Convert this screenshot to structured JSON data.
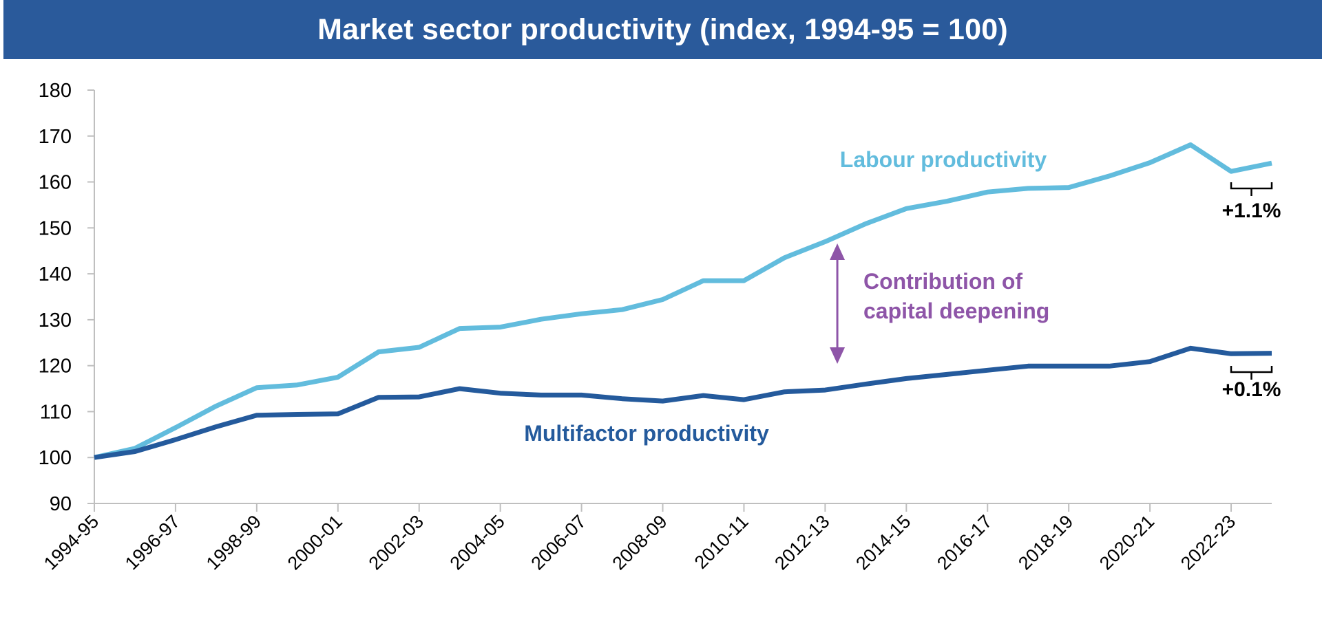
{
  "colors": {
    "title_bg": "#2A5A9B",
    "labour": "#62BCDD",
    "multifactor": "#245A9C",
    "arrow": "#8E55A8",
    "axis": "#BFBFBF"
  },
  "chart_data": {
    "type": "line",
    "title": "Market sector productivity (index, 1994-95 = 100)",
    "xlabel": "",
    "ylabel": "",
    "ylim": [
      90,
      180
    ],
    "yticks": [
      90,
      100,
      110,
      120,
      130,
      140,
      150,
      160,
      170,
      180
    ],
    "grid": false,
    "x": [
      "1994-95",
      "1995-96",
      "1996-97",
      "1997-98",
      "1998-99",
      "1999-00",
      "2000-01",
      "2001-02",
      "2002-03",
      "2003-04",
      "2004-05",
      "2005-06",
      "2006-07",
      "2007-08",
      "2008-09",
      "2009-10",
      "2010-11",
      "2011-12",
      "2012-13",
      "2013-14",
      "2014-15",
      "2015-16",
      "2016-17",
      "2017-18",
      "2018-19",
      "2019-20",
      "2020-21",
      "2021-22",
      "2022-23",
      "2023-24"
    ],
    "x_tick_labels": [
      "1994-95",
      "1996-97",
      "1998-99",
      "2000-01",
      "2002-03",
      "2004-05",
      "2006-07",
      "2008-09",
      "2010-11",
      "2012-13",
      "2014-15",
      "2016-17",
      "2018-19",
      "2020-21",
      "2022-23"
    ],
    "series": [
      {
        "name": "Labour productivity",
        "color_key": "labour",
        "values": [
          100.0,
          102.0,
          106.5,
          111.2,
          115.2,
          115.8,
          117.5,
          123.0,
          124.0,
          128.1,
          128.4,
          130.1,
          131.3,
          132.2,
          134.4,
          138.5,
          138.5,
          143.5,
          147.0,
          150.9,
          154.2,
          155.8,
          157.8,
          158.6,
          158.8,
          161.3,
          164.2,
          168.1,
          162.3,
          164.1
        ],
        "end_change_label": "+1.1%"
      },
      {
        "name": "Multifactor productivity",
        "color_key": "multifactor",
        "values": [
          100.0,
          101.3,
          103.9,
          106.7,
          109.2,
          109.4,
          109.5,
          113.1,
          113.2,
          115.0,
          114.0,
          113.6,
          113.6,
          112.8,
          112.3,
          113.5,
          112.6,
          114.3,
          114.7,
          116.0,
          117.2,
          118.1,
          119.0,
          119.9,
          119.9,
          119.9,
          120.9,
          123.8,
          122.6,
          122.7
        ],
        "end_change_label": "+0.1%"
      }
    ],
    "annotation": {
      "text_lines": [
        "Contribution of",
        "capital deepening"
      ],
      "arrow_x_index": 18.3,
      "arrow_from": 121,
      "arrow_to": 146
    }
  }
}
